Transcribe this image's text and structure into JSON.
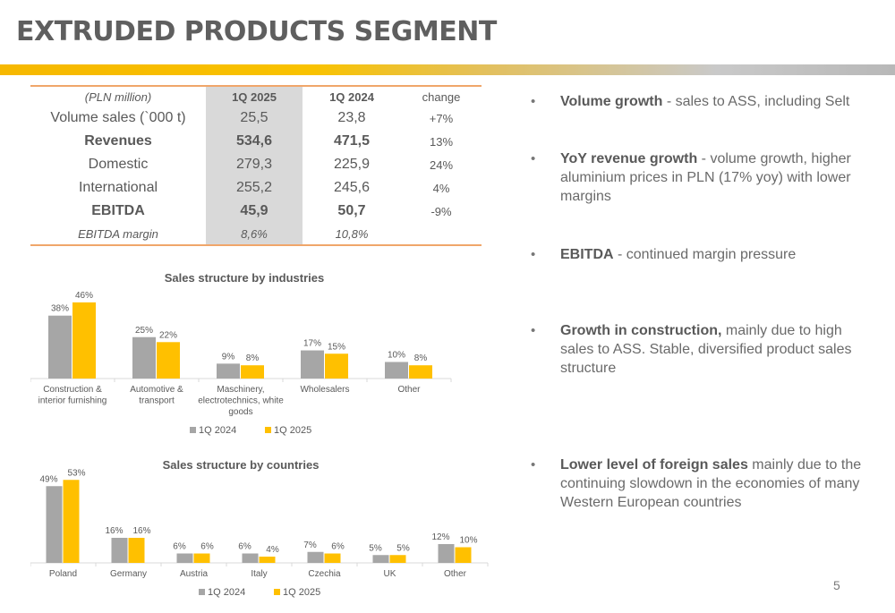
{
  "title": "EXTRUDED PRODUCTS SEGMENT",
  "table": {
    "header": [
      "(PLN million)",
      "1Q 2025",
      "1Q 2024",
      "change"
    ],
    "rows": [
      {
        "label": "Volume sales (`000 t)",
        "q2025": "25,5",
        "q2024": "23,8",
        "change": "+7%"
      },
      {
        "label": "Revenues",
        "q2025": "534,6",
        "q2024": "471,5",
        "change": "13%"
      },
      {
        "label": "Domestic",
        "q2025": "279,3",
        "q2024": "225,9",
        "change": "24%"
      },
      {
        "label": "International",
        "q2025": "255,2",
        "q2024": "245,6",
        "change": "4%"
      },
      {
        "label": "EBITDA",
        "q2025": "45,9",
        "q2024": "50,7",
        "change": "-9%"
      },
      {
        "label": "EBITDA margin",
        "q2025": "8,6%",
        "q2024": "10,8%",
        "change": ""
      }
    ]
  },
  "chart_data": [
    {
      "type": "bar",
      "title": "Sales structure by industries",
      "categories": [
        [
          "Construction &",
          "interior furnishing"
        ],
        [
          "Automotive &",
          "transport"
        ],
        [
          "Maschinery,",
          "electrotechnics, white",
          "goods"
        ],
        [
          "Wholesalers"
        ],
        [
          "Other"
        ]
      ],
      "series": [
        {
          "name": "1Q 2024",
          "color": "#a6a6a6",
          "values": [
            38,
            25,
            9,
            17,
            10
          ]
        },
        {
          "name": "1Q 2025",
          "color": "#ffc000",
          "values": [
            46,
            22,
            8,
            15,
            8
          ]
        }
      ],
      "unit": "%",
      "legend": "bottom"
    },
    {
      "type": "bar",
      "title": "Sales structure by countries",
      "categories": [
        [
          "Poland"
        ],
        [
          "Germany"
        ],
        [
          "Austria"
        ],
        [
          "Italy"
        ],
        [
          "Czechia"
        ],
        [
          "UK"
        ],
        [
          "Other"
        ]
      ],
      "series": [
        {
          "name": "1Q 2024",
          "color": "#a6a6a6",
          "values": [
            49,
            16,
            6,
            6,
            7,
            5,
            12
          ]
        },
        {
          "name": "1Q 2025",
          "color": "#ffc000",
          "values": [
            53,
            16,
            6,
            4,
            6,
            5,
            10
          ]
        }
      ],
      "unit": "%",
      "legend": "bottom"
    }
  ],
  "bullets": [
    {
      "bold": "Volume growth",
      "text": " - sales to ASS, including Selt"
    },
    {
      "bold": "YoY revenue growth",
      "text": " - volume growth, higher aluminium prices in PLN (17% yoy) with lower margins"
    },
    {
      "bold": "EBITDA",
      "text": " - continued margin pressure"
    },
    {
      "bold": "Growth in construction,",
      "text": " mainly due to high sales to ASS. Stable, diversified product sales structure"
    },
    {
      "bold": "Lower level of foreign sales",
      "text": " mainly due to the continuing slowdown in the economies of many Western European countries"
    }
  ],
  "bullet_symbol": "•",
  "page_number": "5"
}
